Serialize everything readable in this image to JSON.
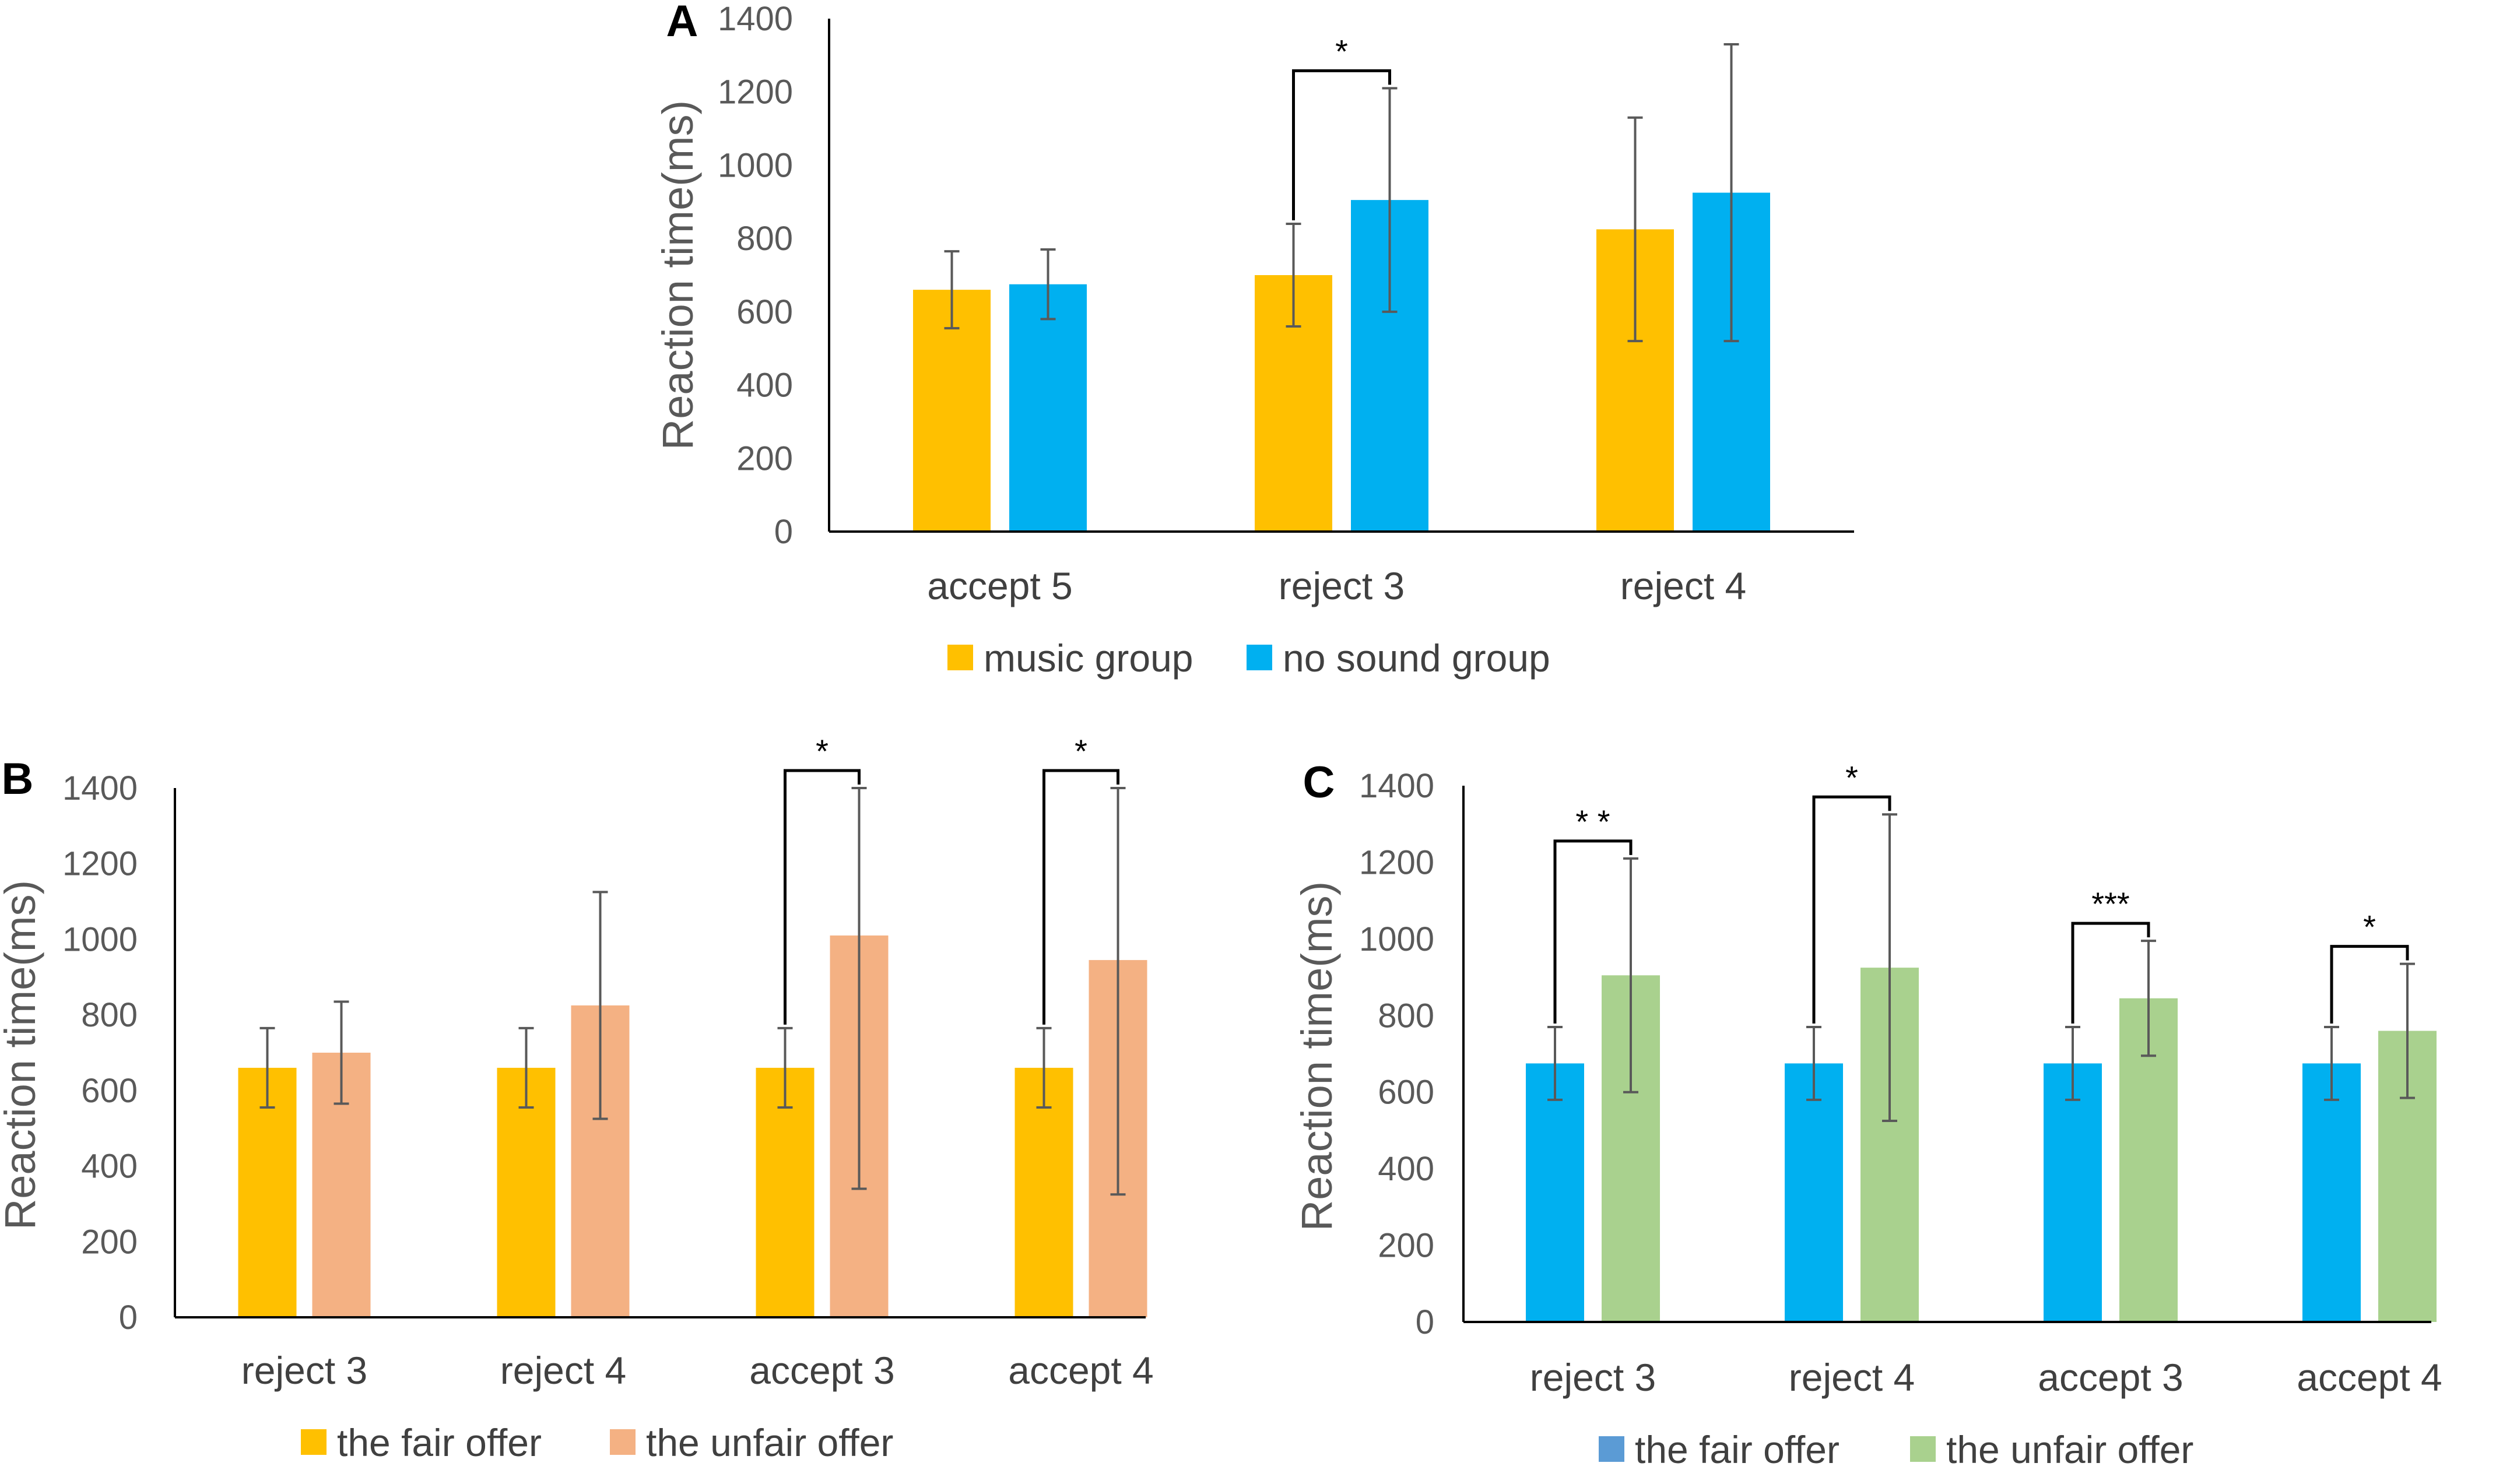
{
  "chart_data": [
    {
      "panel": "A",
      "type": "bar",
      "ylabel": "Reaction time(ms)",
      "ylim": [
        0,
        1400
      ],
      "yticks": [
        0,
        200,
        400,
        600,
        800,
        1000,
        1200,
        1400
      ],
      "categories": [
        "accept 5",
        "reject 3",
        "reject 4"
      ],
      "series": [
        {
          "name": "music group",
          "color": "#FFC000",
          "values": [
            660,
            700,
            825
          ],
          "error": [
            105,
            140,
            305
          ]
        },
        {
          "name": "no sound group",
          "color": "#00B0F0",
          "values": [
            675,
            905,
            925
          ],
          "error": [
            95,
            305,
            405
          ]
        }
      ],
      "significance": [
        {
          "category": 1,
          "label": "*"
        }
      ]
    },
    {
      "panel": "B",
      "type": "bar",
      "ylabel": "Reaction time(ms)",
      "ylim": [
        0,
        1400
      ],
      "yticks": [
        0,
        200,
        400,
        600,
        800,
        1000,
        1200,
        1400
      ],
      "categories": [
        "reject 3",
        "reject 4",
        "accept 3",
        "accept 4"
      ],
      "series": [
        {
          "name": "the fair offer",
          "color": "#FFC000",
          "values": [
            660,
            660,
            660,
            660
          ],
          "error": [
            105,
            105,
            105,
            105
          ]
        },
        {
          "name": "the unfair offer",
          "color": "#F4B183",
          "values": [
            700,
            825,
            1010,
            945
          ],
          "error": [
            135,
            300,
            670,
            620
          ]
        }
      ],
      "significance": [
        {
          "category": 2,
          "label": "*"
        },
        {
          "category": 3,
          "label": "*"
        }
      ]
    },
    {
      "panel": "C",
      "type": "bar",
      "ylabel": "Reaction time(ms)",
      "ylim": [
        0,
        1400
      ],
      "yticks": [
        0,
        200,
        400,
        600,
        800,
        1000,
        1200,
        1400
      ],
      "categories": [
        "reject 3",
        "reject 4",
        "accept 3",
        "accept 4"
      ],
      "series": [
        {
          "name": "the fair offer",
          "color": "#00B0F0",
          "legend_color": "#5B9BD5",
          "values": [
            675,
            675,
            675,
            675
          ],
          "error": [
            95,
            95,
            95,
            95
          ]
        },
        {
          "name": "the unfair offer",
          "color": "#A9D18E",
          "values": [
            905,
            925,
            845,
            760
          ],
          "error": [
            305,
            400,
            150,
            175
          ]
        }
      ],
      "significance": [
        {
          "category": 0,
          "label": "* *"
        },
        {
          "category": 1,
          "label": "*"
        },
        {
          "category": 2,
          "label": "***"
        },
        {
          "category": 3,
          "label": "*"
        }
      ]
    }
  ]
}
